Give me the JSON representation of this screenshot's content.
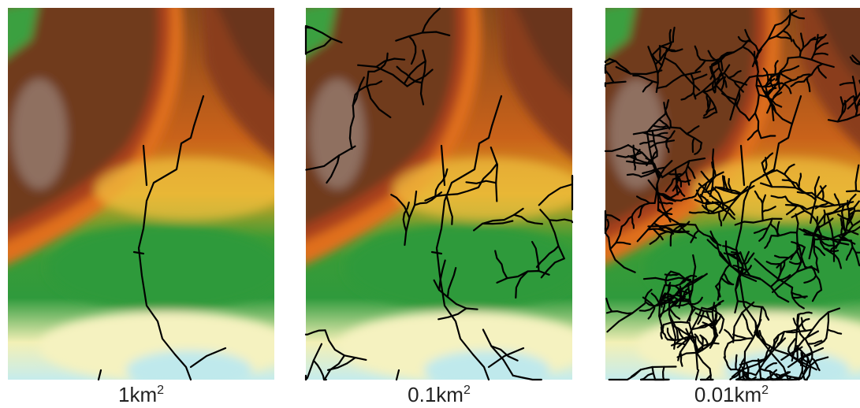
{
  "panels": [
    {
      "label": "1km",
      "superscript": "2"
    },
    {
      "label": "0.1km",
      "superscript": "2"
    },
    {
      "label": "0.01km",
      "superscript": "2"
    }
  ]
}
